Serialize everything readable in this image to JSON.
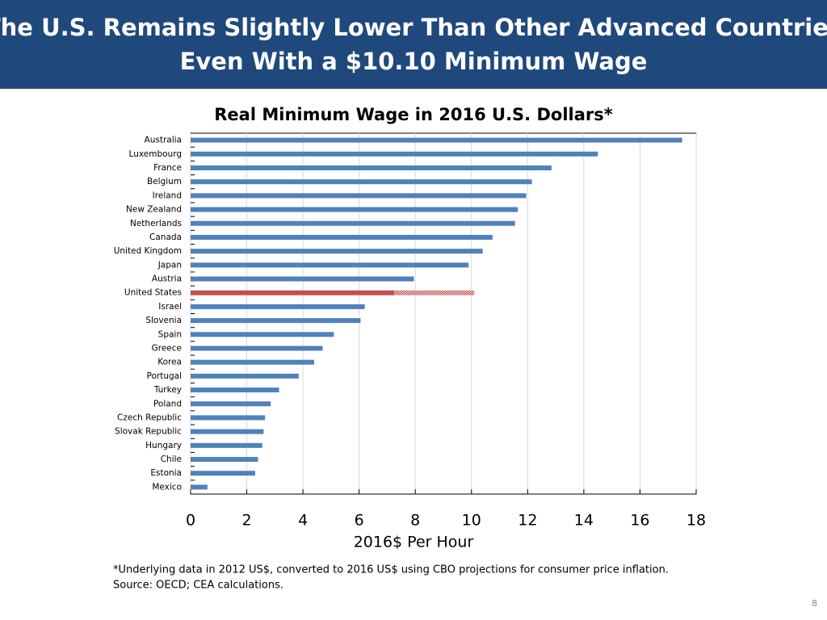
{
  "header": {
    "title_lines": [
      "The U.S. Remains Slightly Lower Than Other Advanced Countries",
      "Even With a $10.10 Minimum Wage"
    ]
  },
  "chart_data": {
    "type": "hbar",
    "title": "Real Minimum Wage in 2016 U.S. Dollars*",
    "x_label": "2016$ Per Hour",
    "categories": [
      "Australia",
      "Luxembourg",
      "France",
      "Belgium",
      "Ireland",
      "New Zealand",
      "Netherlands",
      "Canada",
      "United Kingdom",
      "Japan",
      "Austria",
      "United States",
      "Israel",
      "Slovenia",
      "Spain",
      "Greece",
      "Korea",
      "Portugal",
      "Turkey",
      "Poland",
      "Czech Republic",
      "Slovak Republic",
      "Hungary",
      "Chile",
      "Estonia",
      "Mexico"
    ],
    "values": [
      17.5,
      14.5,
      12.85,
      12.15,
      11.95,
      11.65,
      11.55,
      10.75,
      10.4,
      9.9,
      7.95,
      7.25,
      6.2,
      6.05,
      5.1,
      4.7,
      4.4,
      3.85,
      3.15,
      2.85,
      2.65,
      2.6,
      2.55,
      2.4,
      2.3,
      0.6
    ],
    "extension_values": [
      null,
      null,
      null,
      null,
      null,
      null,
      null,
      null,
      null,
      null,
      null,
      2.85,
      null,
      null,
      null,
      null,
      null,
      null,
      null,
      null,
      null,
      null,
      null,
      null,
      null,
      null
    ],
    "color": "#4f81bd",
    "highlight_color": "#c0504d",
    "colors": [
      "#4f81bd",
      "#4f81bd",
      "#4f81bd",
      "#4f81bd",
      "#4f81bd",
      "#4f81bd",
      "#4f81bd",
      "#4f81bd",
      "#4f81bd",
      "#4f81bd",
      "#4f81bd",
      "#c0504d",
      "#4f81bd",
      "#4f81bd",
      "#4f81bd",
      "#4f81bd",
      "#4f81bd",
      "#4f81bd",
      "#4f81bd",
      "#4f81bd",
      "#4f81bd",
      "#4f81bd",
      "#4f81bd",
      "#4f81bd",
      "#4f81bd",
      "#4f81bd"
    ],
    "xlim": [
      0,
      18
    ],
    "xticks": [
      0,
      2,
      4,
      6,
      8,
      10,
      12,
      14,
      16,
      18
    ],
    "grid": true
  },
  "notes": [
    "*Underlying data in 2012 US$, converted to 2016 US$ using CBO projections for consumer price inflation.",
    "Source: OECD; CEA calculations."
  ],
  "page_number": "8"
}
